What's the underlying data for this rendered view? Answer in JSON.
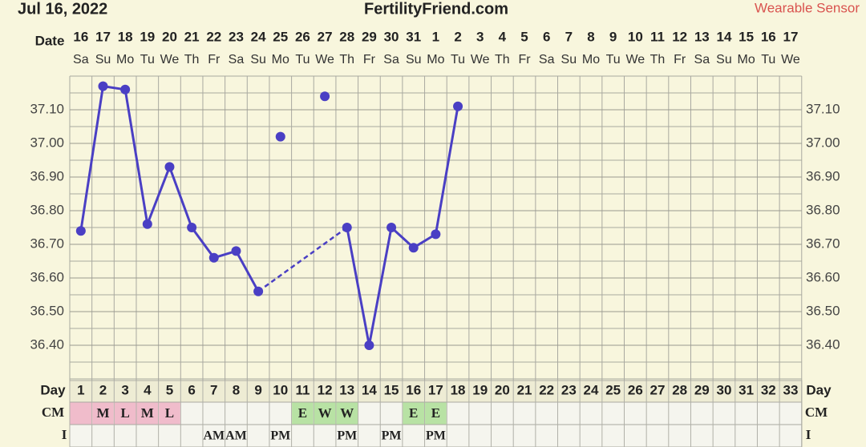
{
  "header": {
    "date": "Jul 16, 2022",
    "site": "FertilityFriend.com",
    "source": "Wearable Sensor",
    "source_color": "#d9534f"
  },
  "chart_data": {
    "type": "line",
    "row_labels": {
      "date": "Date",
      "day": "Day",
      "cm": "CM",
      "i": "I"
    },
    "dates": [
      "16",
      "17",
      "18",
      "19",
      "20",
      "21",
      "22",
      "23",
      "24",
      "25",
      "26",
      "27",
      "28",
      "29",
      "30",
      "31",
      "1",
      "2",
      "3",
      "4",
      "5",
      "6",
      "7",
      "8",
      "9",
      "10",
      "11",
      "12",
      "13",
      "14",
      "15",
      "16",
      "17"
    ],
    "weekdays": [
      "Sa",
      "Su",
      "Mo",
      "Tu",
      "We",
      "Th",
      "Fr",
      "Sa",
      "Su",
      "Mo",
      "Tu",
      "We",
      "Th",
      "Fr",
      "Sa",
      "Su",
      "Mo",
      "Tu",
      "We",
      "Th",
      "Fr",
      "Sa",
      "Su",
      "Mo",
      "Tu",
      "We",
      "Th",
      "Fr",
      "Sa",
      "Su",
      "Mo",
      "Tu",
      "We"
    ],
    "categories": [
      1,
      2,
      3,
      4,
      5,
      6,
      7,
      8,
      9,
      10,
      11,
      12,
      13,
      14,
      15,
      16,
      17,
      18,
      19,
      20,
      21,
      22,
      23,
      24,
      25,
      26,
      27,
      28,
      29,
      30,
      31,
      32,
      33
    ],
    "series": [
      {
        "color": "#4a3fc4",
        "values": [
          36.74,
          37.17,
          37.16,
          36.76,
          36.93,
          36.75,
          36.66,
          36.68,
          36.56,
          null,
          null,
          null,
          36.75,
          36.4,
          36.75,
          36.69,
          36.73,
          37.11,
          null,
          null,
          null,
          null,
          null,
          null,
          null,
          null,
          null,
          null,
          null,
          null,
          null,
          null,
          null
        ]
      },
      {
        "color": "#4a3fc4",
        "connect": false,
        "values": [
          null,
          null,
          null,
          null,
          null,
          null,
          null,
          null,
          null,
          37.02,
          null,
          37.14,
          null,
          null,
          null,
          null,
          null,
          null,
          null,
          null,
          null,
          null,
          null,
          null,
          null,
          null,
          null,
          null,
          null,
          null,
          null,
          null,
          null
        ]
      }
    ],
    "ylim": [
      36.3,
      37.2
    ],
    "yticks": [
      {
        "value": 36.4,
        "label": "36.40"
      },
      {
        "value": 36.5,
        "label": "36.50"
      },
      {
        "value": 36.6,
        "label": "36.60"
      },
      {
        "value": 36.7,
        "label": "36.70"
      },
      {
        "value": 36.8,
        "label": "36.80"
      },
      {
        "value": 36.9,
        "label": "36.90"
      },
      {
        "value": 37.0,
        "label": "37.00"
      },
      {
        "value": 37.1,
        "label": "37.10"
      }
    ],
    "grid": true,
    "cm": [
      null,
      "M",
      "L",
      "M",
      "L",
      null,
      null,
      null,
      null,
      null,
      "E",
      "W",
      "W",
      null,
      null,
      "E",
      "E",
      null,
      null,
      null,
      null,
      null,
      null,
      null,
      null,
      null,
      null,
      null,
      null,
      null,
      null,
      null,
      null
    ],
    "cm_fill": [
      "#f0bccb",
      "#f0bccb",
      "#f0bccb",
      "#f0bccb",
      "#f0bccb",
      null,
      null,
      null,
      null,
      null,
      "#b8e2a4",
      "#b8e2a4",
      "#b8e2a4",
      null,
      null,
      "#b8e2a4",
      "#b8e2a4",
      null,
      null,
      null,
      null,
      null,
      null,
      null,
      null,
      null,
      null,
      null,
      null,
      null,
      null,
      null,
      null
    ],
    "intercourse": [
      null,
      null,
      null,
      null,
      null,
      null,
      "AM",
      "AM",
      null,
      "PM",
      null,
      null,
      "PM",
      null,
      "PM",
      null,
      "PM",
      null,
      null,
      null,
      null,
      null,
      null,
      null,
      null,
      null,
      null,
      null,
      null,
      null,
      null,
      null,
      null
    ]
  }
}
